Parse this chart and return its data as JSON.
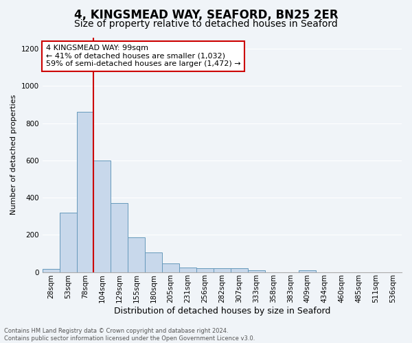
{
  "title": "4, KINGSMEAD WAY, SEAFORD, BN25 2ER",
  "subtitle": "Size of property relative to detached houses in Seaford",
  "xlabel": "Distribution of detached houses by size in Seaford",
  "ylabel": "Number of detached properties",
  "bar_color": "#c8d8eb",
  "bar_edge_color": "#6699bb",
  "bg_color": "#f0f4f8",
  "categories": [
    "28sqm",
    "53sqm",
    "78sqm",
    "104sqm",
    "129sqm",
    "155sqm",
    "180sqm",
    "205sqm",
    "231sqm",
    "256sqm",
    "282sqm",
    "307sqm",
    "333sqm",
    "358sqm",
    "383sqm",
    "409sqm",
    "434sqm",
    "460sqm",
    "485sqm",
    "511sqm",
    "536sqm"
  ],
  "values": [
    15,
    320,
    860,
    600,
    370,
    185,
    105,
    48,
    25,
    20,
    20,
    20,
    10,
    0,
    0,
    10,
    0,
    0,
    0,
    0,
    0
  ],
  "ylim": [
    0,
    1260
  ],
  "yticks": [
    0,
    200,
    400,
    600,
    800,
    1000,
    1200
  ],
  "red_line_x": 2.5,
  "annotation_line1": "4 KINGSMEAD WAY: 99sqm",
  "annotation_line2": "← 41% of detached houses are smaller (1,032)",
  "annotation_line3": "59% of semi-detached houses are larger (1,472) →",
  "red_line_color": "#cc0000",
  "annotation_box_facecolor": "#ffffff",
  "annotation_box_edgecolor": "#cc0000",
  "grid_color": "#ffffff",
  "footer_line1": "Contains HM Land Registry data © Crown copyright and database right 2024.",
  "footer_line2": "Contains public sector information licensed under the Open Government Licence v3.0.",
  "title_fontsize": 12,
  "subtitle_fontsize": 10,
  "ylabel_fontsize": 8,
  "xlabel_fontsize": 9,
  "tick_fontsize": 7.5,
  "footer_fontsize": 6,
  "annotation_fontsize": 8
}
